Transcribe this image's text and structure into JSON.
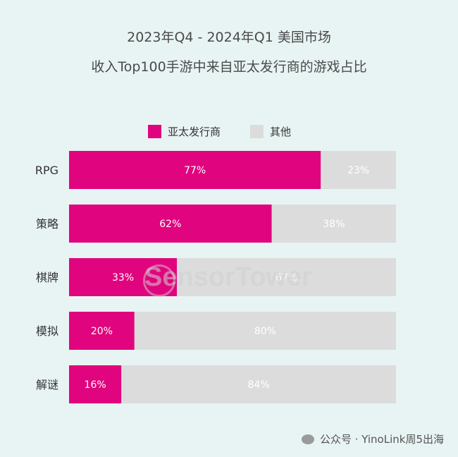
{
  "title_line1": "2023年Q4 - 2024年Q1 美国市场",
  "title_line2": "收入Top100手游中来自亚太发行商的游戏占比",
  "legend": {
    "series1": "亚太发行商",
    "series2": "其他"
  },
  "watermark": "SensorTower",
  "footer": "公众号 · YinoLink周5出海",
  "colors": {
    "series1": "#e0057e",
    "series2": "#dcdcdc",
    "background": "#e8f4f3"
  },
  "chart_data": {
    "type": "bar",
    "orientation": "horizontal",
    "stacked": true,
    "categories": [
      "RPG",
      "策略",
      "棋牌",
      "模拟",
      "解谜"
    ],
    "series": [
      {
        "name": "亚太发行商",
        "values": [
          77,
          62,
          33,
          20,
          16
        ],
        "labels": [
          "77%",
          "62%",
          "33%",
          "20%",
          "16%"
        ]
      },
      {
        "name": "其他",
        "values": [
          23,
          38,
          67,
          80,
          84
        ],
        "labels": [
          "23%",
          "38%",
          "67%",
          "80%",
          "84%"
        ]
      }
    ],
    "xlim": [
      0,
      100
    ],
    "grid": false,
    "legend_position": "top-center"
  }
}
